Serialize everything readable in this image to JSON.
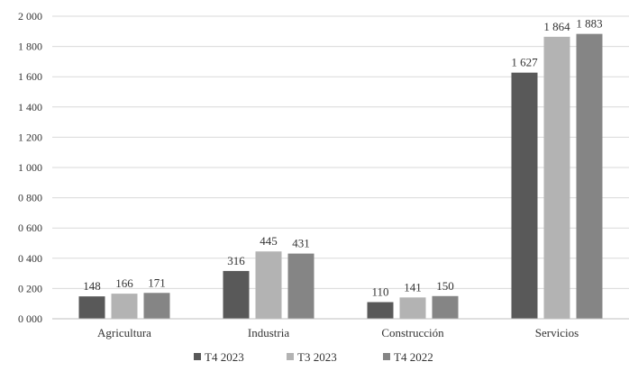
{
  "chart_data": {
    "type": "bar",
    "title": "",
    "xlabel": "",
    "ylabel": "",
    "categories": [
      "Agricultura",
      "Industria",
      "Construcción",
      "Servicios"
    ],
    "series": [
      {
        "name": "T4 2023",
        "values": [
          148,
          316,
          110,
          1627
        ],
        "color": "#595959"
      },
      {
        "name": "T3 2023",
        "values": [
          166,
          445,
          141,
          1864
        ],
        "color": "#b3b3b3"
      },
      {
        "name": "T4 2022",
        "values": [
          171,
          431,
          150,
          1883
        ],
        "color": "#858585"
      }
    ],
    "data_labels": [
      [
        "148",
        "316",
        "110",
        "1 627"
      ],
      [
        "166",
        "445",
        "141",
        "1 864"
      ],
      [
        "171",
        "431",
        "150",
        "1 883"
      ]
    ],
    "y_ticks": [
      {
        "value": 0,
        "label": "0 000"
      },
      {
        "value": 200,
        "label": "0 200"
      },
      {
        "value": 400,
        "label": "0 400"
      },
      {
        "value": 600,
        "label": "0 600"
      },
      {
        "value": 800,
        "label": "0 800"
      },
      {
        "value": 1000,
        "label": "1 000"
      },
      {
        "value": 1200,
        "label": "1 200"
      },
      {
        "value": 1400,
        "label": "1 400"
      },
      {
        "value": 1600,
        "label": "1 600"
      },
      {
        "value": 1800,
        "label": "1 800"
      },
      {
        "value": 2000,
        "label": "2 000"
      }
    ],
    "ylim": [
      0,
      2000
    ],
    "grid": true,
    "legend_position": "bottom"
  }
}
